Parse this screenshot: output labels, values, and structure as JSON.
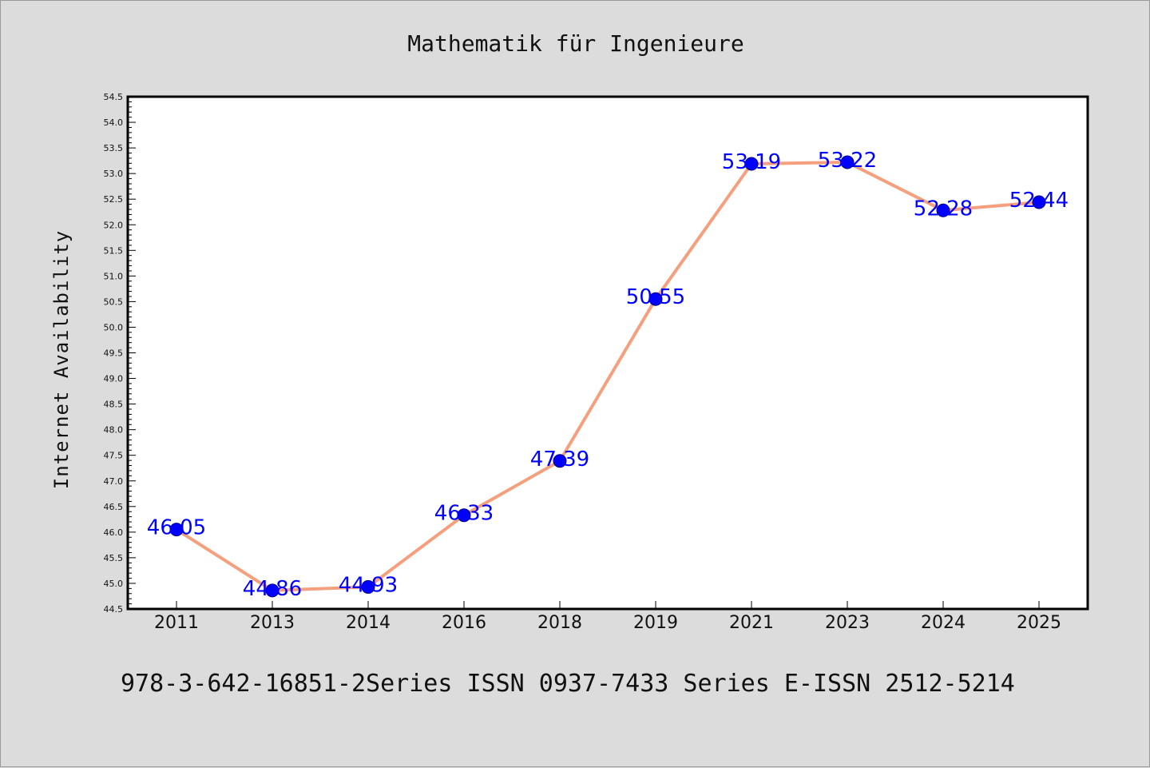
{
  "chart_data": {
    "type": "line",
    "title": "Mathematik für Ingenieure",
    "xlabel": "",
    "ylabel": "Internet Availability",
    "categories": [
      "2011",
      "2013",
      "2014",
      "2016",
      "2018",
      "2019",
      "2021",
      "2023",
      "2024",
      "2025"
    ],
    "series": [
      {
        "values": [
          46.05,
          44.86,
          44.93,
          46.33,
          47.39,
          50.55,
          53.19,
          53.22,
          52.28,
          52.44
        ],
        "labels": [
          "46.05",
          "44.86",
          "44.93",
          "46.33",
          "47.39",
          "50.55",
          "53.19",
          "53.22",
          "52.28",
          "52.44"
        ],
        "line_color": "#f4a07e",
        "marker_color": "#0000ff"
      }
    ],
    "ylim": [
      44.5,
      54.5
    ],
    "y_ticks": [
      "44.5",
      "45.0",
      "45.5",
      "46.0",
      "46.5",
      "47.0",
      "47.5",
      "48.0",
      "48.5",
      "49.0",
      "49.5",
      "50.0",
      "50.5",
      "51.0",
      "51.5",
      "52.0",
      "52.5",
      "53.0",
      "53.5",
      "54.0",
      "54.5"
    ],
    "y_tick_step": 0.5,
    "y_minor_tick_step": 0.1,
    "grid": false,
    "legend": "none",
    "label_color": "#0000ff"
  },
  "footer": {
    "text": "978-3-642-16851-2Series ISSN 0937-7433 Series E-ISSN 2512-5214"
  }
}
